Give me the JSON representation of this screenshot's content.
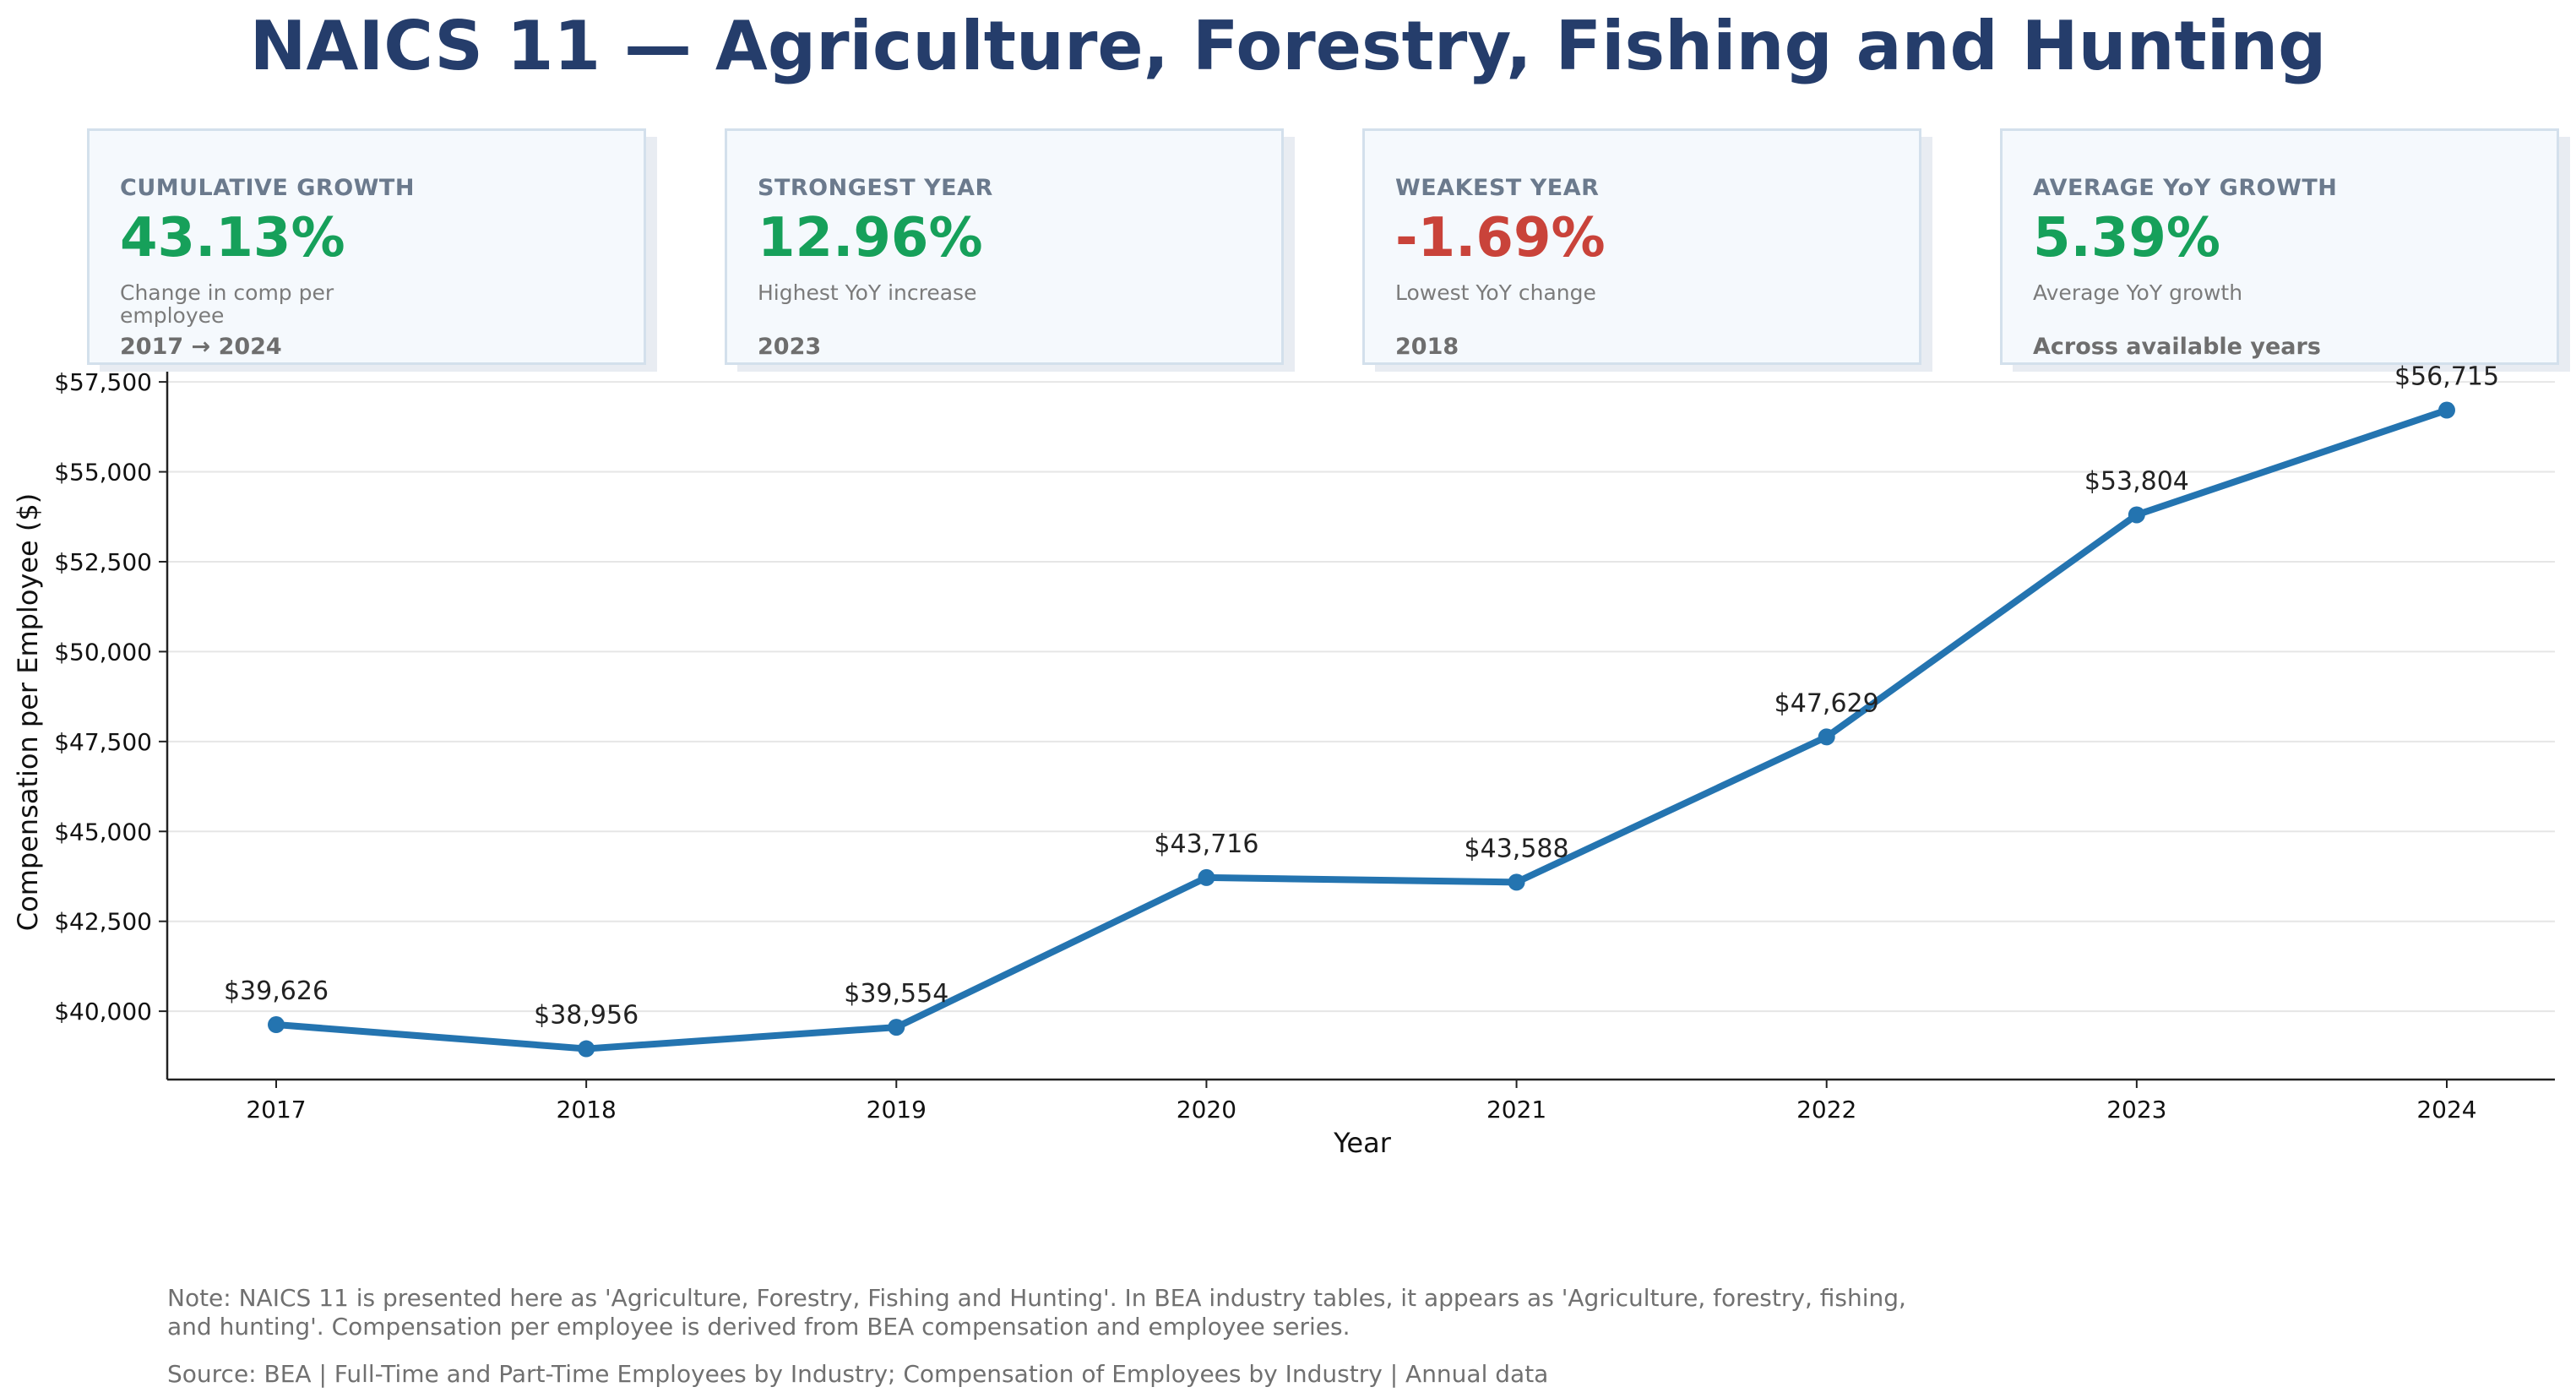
{
  "title": "NAICS 11 — Agriculture, Forestry, Fishing and Hunting",
  "cards": [
    {
      "label": "CUMULATIVE GROWTH",
      "value": "43.13%",
      "sub": "Change in comp per employee",
      "foot": "2017 → 2024",
      "tone": "positive"
    },
    {
      "label": "STRONGEST YEAR",
      "value": "12.96%",
      "sub": "Highest YoY increase",
      "foot": "2023",
      "tone": "positive"
    },
    {
      "label": "WEAKEST YEAR",
      "value": "-1.69%",
      "sub": "Lowest YoY change",
      "foot": "2018",
      "tone": "negative"
    },
    {
      "label": "AVERAGE YoY GROWTH",
      "value": "5.39%",
      "sub": "Average YoY growth",
      "foot": "Across available years",
      "tone": "positive"
    }
  ],
  "colors": {
    "line": "#2474b0",
    "positive": "#16a05a",
    "negative": "#c9433a",
    "title": "#253d6b"
  },
  "chart_data": {
    "type": "line",
    "x": [
      "2017",
      "2018",
      "2019",
      "2020",
      "2021",
      "2022",
      "2023",
      "2024"
    ],
    "values": [
      39626,
      38956,
      39554,
      43716,
      43588,
      47629,
      53804,
      56715
    ],
    "data_labels": [
      "$39,626",
      "$38,956",
      "$39,554",
      "$43,716",
      "$43,588",
      "$47,629",
      "$53,804",
      "$56,715"
    ],
    "xlabel": "Year",
    "ylabel": "Compensation per Employee ($)",
    "ylim": [
      38100,
      57550
    ],
    "yticks": [
      40000,
      42500,
      45000,
      47500,
      50000,
      52500,
      55000,
      57500
    ],
    "ytick_labels": [
      "$40,000",
      "$42,500",
      "$45,000",
      "$47,500",
      "$50,000",
      "$52,500",
      "$55,000",
      "$57,500"
    ],
    "grid": true,
    "legend": "none"
  },
  "footer": {
    "note": "Note: NAICS 11 is presented here as 'Agriculture, Forestry, Fishing and Hunting'. In BEA industry tables, it appears as 'Agriculture, forestry, fishing, and hunting'. Compensation per employee is derived from BEA compensation and employee series.",
    "source": "Source: BEA | Full-Time and Part-Time Employees by Industry; Compensation of Employees by Industry | Annual data"
  }
}
